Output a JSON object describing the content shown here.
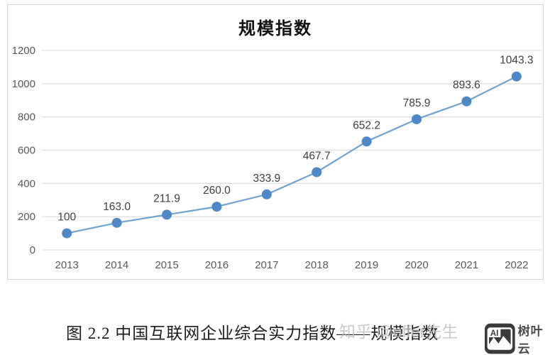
{
  "chart_data": {
    "type": "line",
    "title": "规模指数",
    "categories": [
      "2013",
      "2014",
      "2015",
      "2016",
      "2017",
      "2018",
      "2019",
      "2020",
      "2021",
      "2022"
    ],
    "series": [
      {
        "name": "规模指数",
        "values": [
          100,
          163.0,
          211.9,
          260.0,
          333.9,
          467.7,
          652.2,
          785.9,
          893.6,
          1043.3
        ]
      }
    ],
    "data_labels": [
      "100",
      "163.0",
      "211.9",
      "260.0",
      "333.9",
      "467.7",
      "652.2",
      "785.9",
      "893.6",
      "1043.3"
    ],
    "xlabel": "",
    "ylabel": "",
    "ylim": [
      0,
      1200
    ],
    "ytick_interval": 200,
    "ytick_labels": [
      "0",
      "200",
      "400",
      "600",
      "800",
      "1000",
      "1200"
    ],
    "grid": true,
    "legend_position": "none",
    "line_color": "#6ea2cf",
    "marker_color": "#4e88c7",
    "gridline_color": "#e0e0e0",
    "tick_label_color": "#595959",
    "data_label_color": "#3f3f3f"
  },
  "caption": {
    "text": "图 2.2  中国互联网企业综合实力指数——规模指数"
  },
  "watermark": {
    "text": "知乎 @offer先生"
  },
  "logo": {
    "ai_label": "AI",
    "brand": "树叶云",
    "badge_color": "#3a3a3a"
  }
}
